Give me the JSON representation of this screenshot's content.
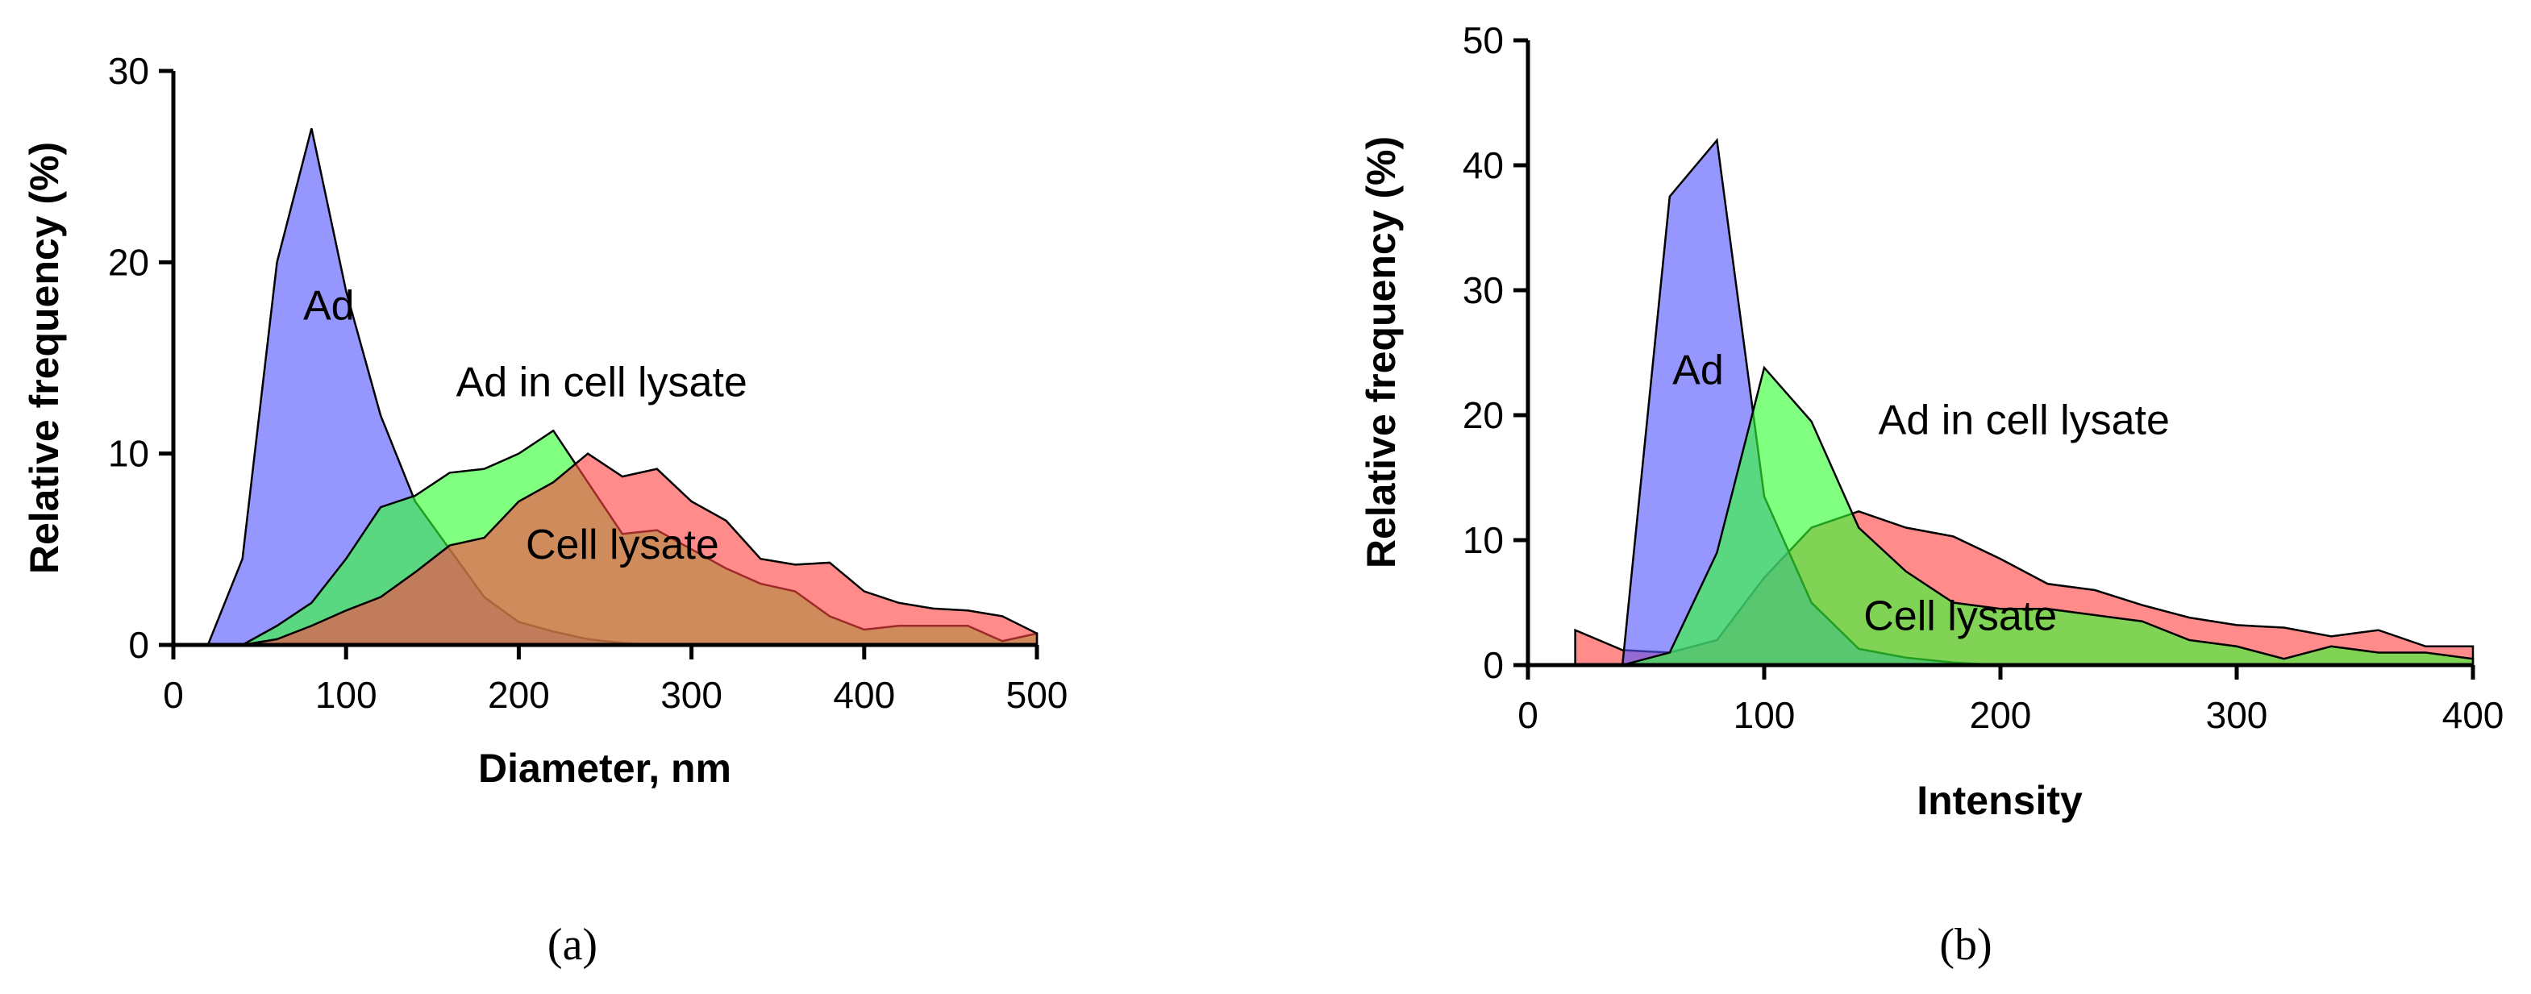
{
  "chart_data": [
    {
      "type": "area",
      "caption": "(a)",
      "xlabel": "Diameter, nm",
      "ylabel": "Relative frequency (%)",
      "xlim": [
        0,
        500
      ],
      "ylim": [
        0,
        30
      ],
      "xticks": [
        0,
        100,
        200,
        300,
        400,
        500
      ],
      "yticks": [
        0,
        10,
        20,
        30
      ],
      "series": [
        {
          "name": "Ad",
          "label": "Ad",
          "color": "#5555ff",
          "x": [
            20,
            40,
            60,
            80,
            100,
            120,
            140,
            160,
            180,
            200,
            220,
            240,
            260,
            280,
            300
          ],
          "values": [
            0,
            4.5,
            20,
            27,
            18.5,
            12,
            7.5,
            5,
            2.5,
            1.2,
            0.7,
            0.3,
            0.1,
            0,
            0
          ]
        },
        {
          "name": "Ad in cell lysate",
          "label": "Ad in cell lysate",
          "color": "#33ff33",
          "x": [
            40,
            60,
            80,
            100,
            120,
            140,
            160,
            180,
            200,
            220,
            240,
            260,
            280,
            300,
            320,
            340,
            360,
            380,
            400,
            420,
            440,
            460,
            480,
            500
          ],
          "values": [
            0,
            1,
            2.2,
            4.5,
            7.2,
            7.8,
            9,
            9.2,
            10,
            11.2,
            8.5,
            5.8,
            6,
            5,
            4,
            3.2,
            2.8,
            1.5,
            0.8,
            1,
            1,
            1,
            0.2,
            0.6
          ]
        },
        {
          "name": "Cell lysate",
          "label": "Cell lysate",
          "color": "#ff4444",
          "x": [
            40,
            60,
            80,
            100,
            120,
            140,
            160,
            180,
            200,
            220,
            240,
            260,
            280,
            300,
            320,
            340,
            360,
            380,
            400,
            420,
            440,
            460,
            480,
            500
          ],
          "values": [
            0,
            0.3,
            1,
            1.8,
            2.5,
            3.8,
            5.2,
            5.6,
            7.5,
            8.5,
            10,
            8.8,
            9.2,
            7.5,
            6.5,
            4.5,
            4.2,
            4.3,
            2.8,
            2.2,
            1.9,
            1.8,
            1.5,
            0.6
          ]
        }
      ]
    },
    {
      "type": "area",
      "caption": "(b)",
      "xlabel": "Intensity",
      "ylabel": "Relative frequency (%)",
      "xlim": [
        0,
        400
      ],
      "ylim": [
        0,
        50
      ],
      "xticks": [
        0,
        100,
        200,
        300,
        400
      ],
      "yticks": [
        0,
        10,
        20,
        30,
        40,
        50
      ],
      "series": [
        {
          "name": "Ad",
          "label": "Ad",
          "color": "#5555ff",
          "x": [
            40,
            60,
            80,
            100,
            120,
            140,
            160,
            180,
            200
          ],
          "values": [
            0,
            37.5,
            42,
            13.5,
            5,
            1.3,
            0.6,
            0.2,
            0
          ]
        },
        {
          "name": "Ad in cell lysate",
          "label": "Ad in cell lysate",
          "color": "#33ff33",
          "x": [
            40,
            60,
            80,
            100,
            120,
            140,
            160,
            180,
            200,
            220,
            240,
            260,
            280,
            300,
            320,
            340,
            360,
            380,
            400
          ],
          "values": [
            0,
            1,
            9,
            23.8,
            19.5,
            11,
            7.5,
            5,
            4.5,
            4.5,
            4,
            3.5,
            2,
            1.5,
            0.5,
            1.5,
            1,
            1,
            0.5
          ]
        },
        {
          "name": "Cell lysate",
          "label": "Cell lysate",
          "color": "#ff4444",
          "x": [
            20,
            40,
            60,
            80,
            100,
            120,
            140,
            160,
            180,
            200,
            220,
            240,
            260,
            280,
            300,
            320,
            340,
            360,
            380,
            400
          ],
          "values": [
            2.8,
            1.2,
            1,
            2,
            7,
            11,
            12.3,
            11,
            10.3,
            8.5,
            6.5,
            6,
            4.8,
            3.8,
            3.2,
            3,
            2.3,
            2.8,
            1.5,
            1.5
          ]
        }
      ]
    }
  ]
}
